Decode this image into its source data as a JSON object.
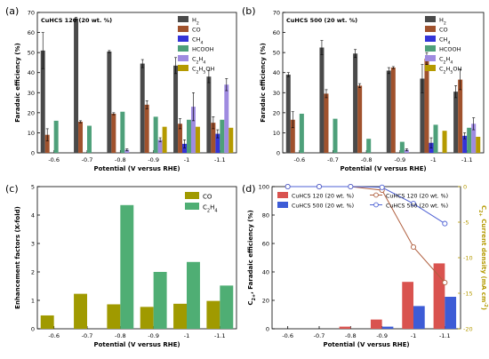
{
  "chart_data": [
    {
      "panel": "(a)",
      "type": "bar",
      "title": "CuHCS 120 (20 wt. %)",
      "xlabel": "Potential (V versus RHE)",
      "ylabel": "Faradaic efficiency (%)",
      "categories": [
        "-0.6",
        "-0.7",
        "-0.8",
        "-0.9",
        "-1",
        "-1.1"
      ],
      "ylim": [
        0,
        70
      ],
      "yticks": [
        "0",
        "10",
        "20",
        "30",
        "40",
        "50",
        "60",
        "70"
      ],
      "legend_position": "top-right",
      "series": [
        {
          "name": "H2",
          "label_main": "H",
          "label_sub": "2",
          "color": "#4a4a4a",
          "values": [
            51,
            67,
            50.5,
            44.5,
            43.5,
            38
          ],
          "errors": [
            9,
            0.5,
            0.5,
            2,
            4,
            3
          ]
        },
        {
          "name": "CO",
          "label_main": "CO",
          "label_sub": "",
          "color": "#a0522d",
          "values": [
            9,
            15.5,
            19.5,
            24,
            14.5,
            15
          ],
          "errors": [
            3,
            0.5,
            0.5,
            2,
            2.5,
            3
          ]
        },
        {
          "name": "CH4",
          "label_main": "CH",
          "label_sub": "4",
          "color": "#3434d8",
          "values": [
            0,
            0,
            0,
            0,
            4.5,
            9.5
          ],
          "errors": [
            0,
            0,
            0,
            0,
            2,
            2
          ]
        },
        {
          "name": "HCOOH",
          "label_main": "HCOOH",
          "label_sub": "",
          "color": "#4ea07a",
          "values": [
            16,
            13.5,
            20.5,
            18,
            16.5,
            16.5
          ],
          "errors": [
            0,
            0,
            0,
            0,
            0,
            0
          ]
        },
        {
          "name": "C2H4",
          "label_main": "C",
          "label_sub": "2",
          "label_main2": "H",
          "label_sub2": "4",
          "color": "#9f8be0",
          "values": [
            0,
            0,
            1.5,
            6.5,
            23,
            34
          ],
          "errors": [
            0,
            0,
            0.5,
            1,
            7,
            3
          ]
        },
        {
          "name": "C2H5OH",
          "label_main": "C",
          "label_sub": "2",
          "label_main2": "H",
          "label_sub2": "5",
          "label_main3": "OH",
          "color": "#b59a00",
          "values": [
            0,
            0,
            0,
            13,
            13,
            12.5
          ],
          "errors": [
            0,
            0,
            0,
            0,
            0,
            0
          ]
        }
      ]
    },
    {
      "panel": "(b)",
      "type": "bar",
      "title": "CuHCS 500 (20 wt. %)",
      "xlabel": "Potential (V versus RHE)",
      "ylabel": "Faradaic efficiency (%)",
      "categories": [
        "-0.6",
        "-0.7",
        "-0.8",
        "-0.9",
        "-1",
        "-1.1"
      ],
      "ylim": [
        0,
        70
      ],
      "yticks": [
        "0",
        "10",
        "20",
        "30",
        "40",
        "50",
        "60",
        "70"
      ],
      "legend_position": "top-right",
      "series": [
        {
          "name": "H2",
          "label_main": "H",
          "label_sub": "2",
          "color": "#4a4a4a",
          "values": [
            39,
            52.5,
            49.5,
            41,
            37,
            30.5
          ],
          "errors": [
            1,
            3.5,
            2,
            1.5,
            7,
            3
          ]
        },
        {
          "name": "CO",
          "label_main": "CO",
          "label_sub": "",
          "color": "#a0522d",
          "values": [
            16.5,
            29.5,
            33.5,
            42.5,
            47,
            36.5
          ],
          "errors": [
            4,
            2,
            1,
            0.5,
            3,
            5
          ]
        },
        {
          "name": "CH4",
          "label_main": "CH",
          "label_sub": "4",
          "color": "#3434d8",
          "values": [
            0,
            0,
            0,
            0,
            5,
            8.5
          ],
          "errors": [
            0,
            0,
            0,
            0,
            2.5,
            1.5
          ]
        },
        {
          "name": "HCOOH",
          "label_main": "HCOOH",
          "label_sub": "",
          "color": "#4ea07a",
          "values": [
            19.5,
            17,
            7,
            5.5,
            14,
            12.5
          ],
          "errors": [
            0,
            0,
            0,
            0,
            0,
            0
          ]
        },
        {
          "name": "C2H4",
          "label_main": "C",
          "label_sub": "2",
          "label_main2": "H",
          "label_sub2": "4",
          "color": "#9f8be0",
          "values": [
            0,
            0,
            0,
            1.5,
            0,
            14.5
          ],
          "errors": [
            0,
            0,
            0,
            0.5,
            0,
            3
          ]
        },
        {
          "name": "C2H5OH",
          "label_main": "C",
          "label_sub": "2",
          "label_main2": "H",
          "label_sub2": "5",
          "label_main3": "OH",
          "color": "#b59a00",
          "values": [
            0,
            0,
            0,
            0,
            11,
            8
          ],
          "errors": [
            0,
            0,
            0,
            0,
            0,
            0
          ]
        }
      ]
    },
    {
      "panel": "(c)",
      "type": "bar",
      "title": "",
      "xlabel": "Potential (V versus RHE)",
      "ylabel": "Enhancement factors (X-fold)",
      "categories": [
        "-0.6",
        "-0.7",
        "-0.8",
        "-0.9",
        "-1",
        "-1.1"
      ],
      "ylim": [
        0,
        5
      ],
      "yticks": [
        "0",
        "1",
        "2",
        "3",
        "4",
        "5"
      ],
      "legend_position": "top-right",
      "series": [
        {
          "name": "CO",
          "label_main": "CO",
          "label_sub": "",
          "color": "#a09a00",
          "values": [
            0.47,
            1.23,
            0.86,
            0.77,
            0.88,
            0.98
          ]
        },
        {
          "name": "C2H4",
          "label_main": "C",
          "label_sub": "2",
          "label_main2": "H",
          "label_sub2": "4",
          "color": "#4fae74",
          "values": [
            0,
            0,
            4.35,
            2.0,
            2.35,
            1.52
          ]
        }
      ]
    },
    {
      "panel": "(d)",
      "type": "bar",
      "title": "",
      "xlabel": "Potential (V versus RHE)",
      "ylabel": "Faradaic efficiency (%)",
      "ylabel_prefix_main": "C",
      "ylabel_prefix_sub": "2+",
      "y2label": "Current density (mA cm",
      "y2label_prefix_main": "C",
      "y2label_prefix_sub": "2+",
      "y2label_sup": "-2",
      "categories": [
        "-0.6",
        "-0.7",
        "-0.8",
        "-0.9",
        "-1",
        "-1.1"
      ],
      "ylim": [
        0,
        100
      ],
      "yticks": [
        "0",
        "20",
        "40",
        "60",
        "80",
        "100"
      ],
      "y2lim": [
        -20,
        0
      ],
      "y2ticks": [
        "0",
        "-5",
        "-10",
        "-15",
        "-20"
      ],
      "legend_position": "top",
      "bar_series": [
        {
          "name": "CuHCS 120 (20 wt. %)",
          "color": "#d9534f",
          "values": [
            0,
            0,
            1.5,
            6.5,
            33,
            46
          ]
        },
        {
          "name": "CuHCS 500 (20 wt. %)",
          "color": "#3d5cd6",
          "values": [
            0,
            0,
            0,
            1.5,
            16,
            22.5
          ]
        }
      ],
      "line_series": [
        {
          "name": "CuHCS 120 (20 wt. %)",
          "color": "#b06040",
          "values": [
            0,
            0,
            0,
            -0.5,
            -8.5,
            -13.5
          ]
        },
        {
          "name": "CuHCS 500 (20 wt. %)",
          "color": "#4f62d4",
          "values": [
            0,
            0,
            0,
            -0.1,
            -2.4,
            -5.2
          ]
        }
      ]
    }
  ]
}
